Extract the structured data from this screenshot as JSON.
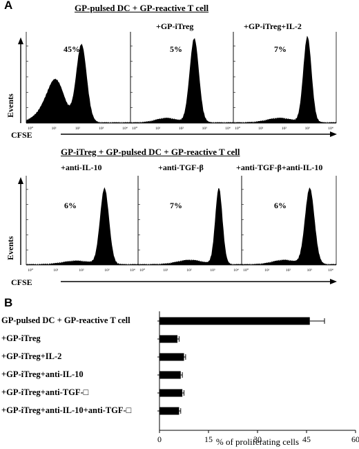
{
  "panel_a": {
    "letter": "A",
    "top_title": "GP-pulsed DC + GP-reactive T cell",
    "bottom_title": "GP-iTreg + GP-pulsed DC + GP-reactive T cell",
    "y_axis_label": "Events",
    "x_axis_label": "CFSE",
    "x_ticks": [
      "10⁰",
      "10¹",
      "10²",
      "10³",
      "10⁴"
    ],
    "top_row": [
      {
        "condition": "",
        "percent": "45%"
      },
      {
        "condition": "+GP-iTreg",
        "percent": "5%"
      },
      {
        "condition": "+GP-iTreg+IL-2",
        "percent": "7%"
      }
    ],
    "bottom_row": [
      {
        "condition": "+anti-IL-10",
        "percent": "6%"
      },
      {
        "condition": "+anti-TGF-β",
        "percent": "7%"
      },
      {
        "condition": "+anti-TGF-β+anti-IL-10",
        "percent": "6%"
      }
    ]
  },
  "chart_data": {
    "type": "bar",
    "orientation": "horizontal",
    "panel_letter": "B",
    "categories": [
      "GP-pulsed DC + GP-reactive T cell",
      "+GP-iTreg",
      "+GP-iTreg+IL-2",
      "+GP-iTreg+anti-IL-10",
      "+GP-iTreg+anti-TGF-□",
      "+GP-iTreg+anti-IL-10+anti-TGF-□"
    ],
    "values": [
      46,
      5.5,
      7.5,
      6.5,
      7,
      6
    ],
    "errors": [
      4.5,
      0.5,
      0.5,
      0.5,
      0.5,
      0.5
    ],
    "xlabel": "% of proliferating cells",
    "xlim": [
      0,
      60
    ],
    "xticks": [
      "0",
      "15",
      "30",
      "45",
      "60"
    ],
    "bar_color": "#000000",
    "grid": false
  }
}
